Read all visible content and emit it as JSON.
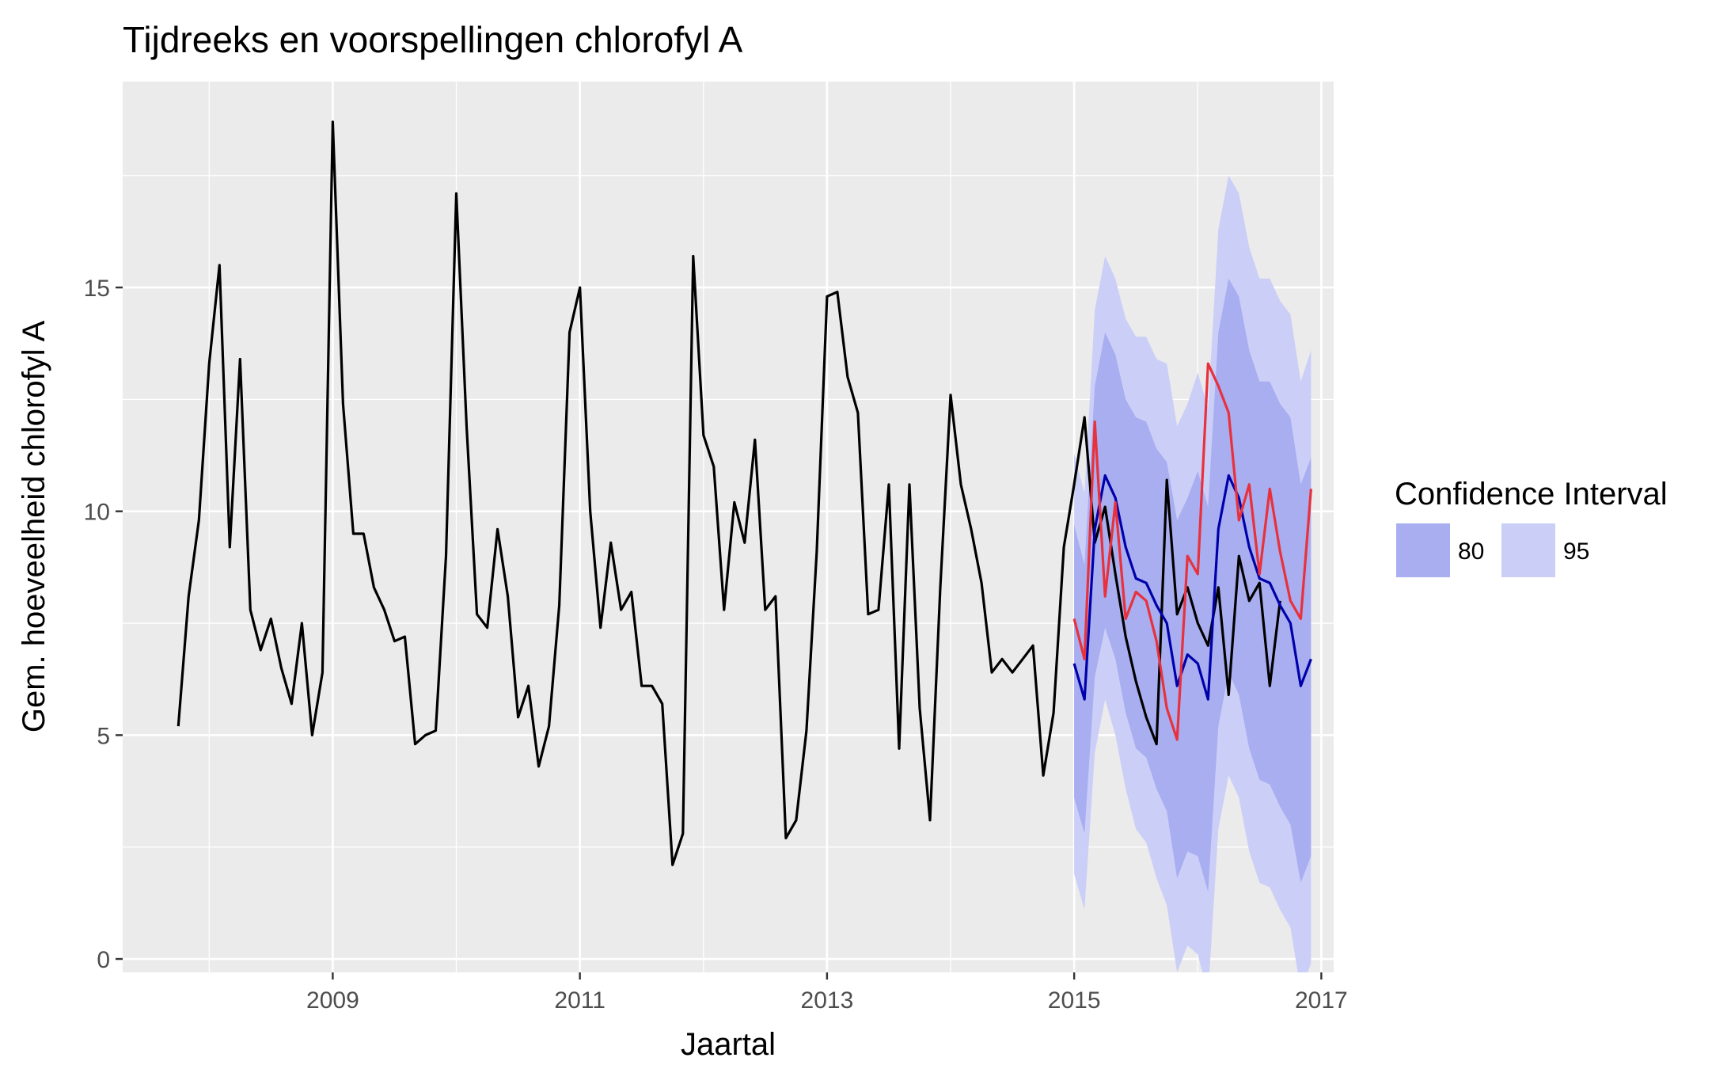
{
  "chart_data": {
    "type": "line",
    "title": "Tijdreeks en voorspellingen chlorofyl A",
    "xlabel": "Jaartal",
    "ylabel": "Gem. hoeveelheid chlorofyl A",
    "xlim": [
      2007.3,
      2017.1
    ],
    "ylim": [
      -0.3,
      19.6
    ],
    "x_ticks": [
      2009,
      2011,
      2013,
      2015,
      2017
    ],
    "x_tick_labels": [
      "2009",
      "2011",
      "2013",
      "2015",
      "2017"
    ],
    "y_ticks": [
      0,
      5,
      10,
      15
    ],
    "y_tick_labels": [
      "0",
      "5",
      "10",
      "15"
    ],
    "grid": true,
    "legend": {
      "title": "Confidence Interval",
      "position": "right",
      "entries": [
        {
          "label": "80",
          "color": "#a8aef0"
        },
        {
          "label": "95",
          "color": "#cbcff8"
        }
      ]
    },
    "colors": {
      "panel": "#ebebeb",
      "grid": "#ffffff",
      "observed": "#000000",
      "forecast": "#0000aa",
      "actual": "#e8313c",
      "ci80": "#a8aef0",
      "ci95": "#cbcff8"
    },
    "start": [
      2007,
      10
    ],
    "observed": [
      5.2,
      8.1,
      9.8,
      13.3,
      15.5,
      9.2,
      13.4,
      7.8,
      6.9,
      7.6,
      6.5,
      5.7,
      7.5,
      5.0,
      6.4,
      18.7,
      12.4,
      9.5,
      9.5,
      8.3,
      7.8,
      7.1,
      7.2,
      4.8,
      5.0,
      5.1,
      9.0,
      17.1,
      11.9,
      7.7,
      7.4,
      9.6,
      8.1,
      5.4,
      6.1,
      4.3,
      5.2,
      7.9,
      14.0,
      15.0,
      10.0,
      7.4,
      9.3,
      7.8,
      8.2,
      6.1,
      6.1,
      5.7,
      2.1,
      2.8,
      15.7,
      11.7,
      11.0,
      7.8,
      10.2,
      9.3,
      11.6,
      7.8,
      8.1,
      2.7,
      3.1,
      5.1,
      9.1,
      14.8,
      14.9,
      13.0,
      12.2,
      7.7,
      7.8,
      10.6,
      4.7,
      10.6,
      5.6,
      3.1,
      8.3,
      12.6,
      10.6,
      9.6,
      8.4,
      6.4,
      6.7,
      6.4,
      6.7,
      7.0,
      4.1,
      5.5,
      9.2,
      10.6,
      12.1,
      9.3,
      10.1,
      8.6,
      7.2,
      6.2,
      5.4,
      4.8,
      10.7,
      7.7,
      8.3,
      7.5,
      7.0,
      8.3,
      5.9,
      9.0,
      8.0,
      8.4,
      6.1,
      8.0
    ],
    "forecast_start": [
      2015,
      1
    ],
    "forecast": [
      6.6,
      5.8,
      9.6,
      10.8,
      10.3,
      9.2,
      8.5,
      8.4,
      7.9,
      7.5,
      6.1,
      6.8,
      6.6,
      5.8,
      9.6,
      10.8,
      10.3,
      9.2,
      8.5,
      8.4,
      7.9,
      7.5,
      6.1,
      6.7
    ],
    "actual": [
      7.6,
      6.7,
      12.0,
      8.1,
      10.2,
      7.6,
      8.2,
      8.0,
      7.1,
      5.6,
      4.9,
      9.0,
      8.6,
      13.3,
      12.8,
      12.2,
      9.8,
      10.6,
      8.6,
      10.5,
      9.1,
      8.0,
      7.6,
      10.5
    ],
    "ci80_lower": [
      3.6,
      2.8,
      6.3,
      7.4,
      6.7,
      5.5,
      4.7,
      4.5,
      3.8,
      3.3,
      1.8,
      2.4,
      2.3,
      1.5,
      5.2,
      6.4,
      5.9,
      4.7,
      4.0,
      3.9,
      3.4,
      3.0,
      1.7,
      2.3
    ],
    "ci80_upper": [
      9.7,
      8.8,
      12.8,
      14.0,
      13.5,
      12.5,
      12.1,
      12.0,
      11.4,
      11.1,
      9.8,
      10.3,
      10.9,
      10.1,
      14.0,
      15.2,
      14.8,
      13.6,
      12.9,
      12.9,
      12.4,
      12.1,
      10.6,
      11.2
    ],
    "ci95_lower": [
      1.9,
      1.1,
      4.6,
      5.8,
      5.0,
      3.8,
      2.9,
      2.6,
      1.8,
      1.2,
      -0.3,
      0.3,
      0.1,
      -0.8,
      2.9,
      4.1,
      3.6,
      2.4,
      1.7,
      1.6,
      1.1,
      0.7,
      -0.7,
      -0.1
    ],
    "ci95_upper": [
      11.3,
      10.4,
      14.5,
      15.7,
      15.2,
      14.3,
      13.9,
      13.9,
      13.4,
      13.3,
      11.9,
      12.4,
      13.1,
      12.3,
      16.3,
      17.5,
      17.1,
      15.9,
      15.2,
      15.2,
      14.7,
      14.4,
      12.9,
      13.6
    ]
  }
}
